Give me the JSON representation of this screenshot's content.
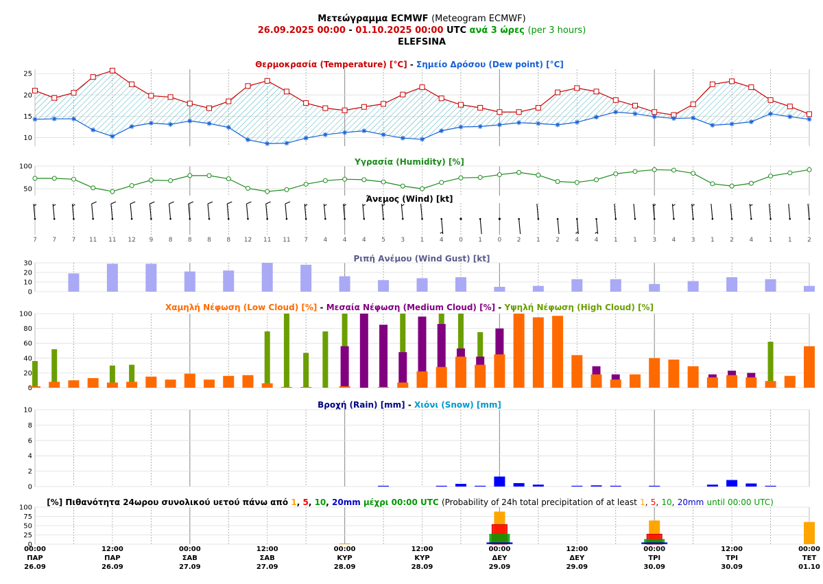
{
  "header": {
    "title_gr": "Μετεώγραμμα ECMWF",
    "title_en": "(Meteogram ECMWF)",
    "date_from": "26.09.2025 00:00",
    "date_sep": "-",
    "date_to": "01.10.2025 00:00",
    "utc": "UTC",
    "step_gr": "ανά 3 ώρες",
    "step_en": "(per 3 hours)",
    "station": "ELEFSINA"
  },
  "panels": {
    "temp": {
      "t1": "Θερμοκρασία (Temperature) [°C]",
      "sep": "-",
      "t2": "Σημείο Δρόσου (Dew point) [°C]"
    },
    "hum": {
      "t1": "Υγρασία (Humidity) [%]"
    },
    "wind": {
      "t1": "Άνεμος (Wind) [kt]"
    },
    "gust": {
      "t1": "Ριπή Ανέμου (Wind Gust) [kt]"
    },
    "cloud": {
      "t1": "Χαμηλή Νέφωση (Low Cloud) [%]",
      "sep1": "-",
      "t2": "Μεσαία Νέφωση (Medium Cloud) [%]",
      "sep2": "-",
      "t3": "Υψηλή Νέφωση (High Cloud) [%]"
    },
    "rain": {
      "t1": "Βροχή (Rain) [mm]",
      "sep": "-",
      "t2": "Χιόνι (Snow) [mm]"
    },
    "prob": {
      "p1": "[%] Πιθανότητα 24ωρου συνολικού υετού πάνω από",
      "p2": "μέχρι 00:00 UTC",
      "p3": "(Probability of 24h total precipitation of at least",
      "p4": "until 00:00 UTC)",
      "mm": "mm",
      "comma": ",",
      "thr1": "1",
      "thr5": "5",
      "thr10": "10",
      "thr20": "20"
    }
  },
  "colors": {
    "temp": "#cc0000",
    "dew": "#1560d6",
    "hum": "#1a8a1a",
    "gust": "#a9a9f5",
    "low": "#ff6a00",
    "medium": "#800080",
    "high": "#6b9e00",
    "rain": "#0000ff",
    "snow": "#0099cc",
    "darkblue": "#000080",
    "green": "#009900",
    "p1": "#ffa500",
    "p5": "#ff0000",
    "p10": "#00a000",
    "p20": "#0000cc"
  },
  "x_axis": {
    "time": [
      "00:00",
      "12:00",
      "00:00",
      "12:00",
      "00:00",
      "12:00",
      "00:00",
      "12:00",
      "00:00",
      "12:00",
      "00:00"
    ],
    "day": [
      "ΠΑΡ",
      "ΠΑΡ",
      "ΣΑΒ",
      "ΣΑΒ",
      "ΚΥΡ",
      "ΚΥΡ",
      "ΔΕΥ",
      "ΔΕΥ",
      "ΤΡΙ",
      "ΤΡΙ",
      "ΤΕΤ"
    ],
    "date": [
      "26.09",
      "26.09",
      "27.09",
      "27.09",
      "28.09",
      "28.09",
      "29.09",
      "29.09",
      "30.09",
      "30.09",
      "01.10"
    ]
  },
  "chart_data": [
    {
      "type": "line",
      "title": "Θερμοκρασία (Temperature) [°C] - Σημείο Δρόσου (Dew point) [°C]",
      "x_hours": [
        0,
        3,
        6,
        9,
        12,
        15,
        18,
        21,
        24,
        27,
        30,
        33,
        36,
        39,
        42,
        45,
        48,
        51,
        54,
        57,
        60,
        63,
        66,
        69,
        72,
        75,
        78,
        81,
        84,
        87,
        90,
        93,
        96,
        99,
        102,
        105,
        108,
        111,
        114,
        117,
        120
      ],
      "ylim": [
        8,
        26
      ],
      "yticks": [
        10,
        15,
        20,
        25
      ],
      "series": [
        {
          "name": "Temperature",
          "values": [
            21.0,
            19.3,
            20.5,
            24.2,
            25.7,
            22.5,
            19.8,
            19.5,
            18.0,
            16.9,
            18.5,
            22.1,
            23.3,
            20.8,
            18.1,
            16.9,
            16.4,
            17.2,
            17.9,
            20.1,
            21.8,
            19.2,
            17.7,
            17.0,
            16.0,
            16.0,
            17.0,
            20.6,
            21.6,
            20.8,
            18.8,
            17.5,
            16.0,
            15.3,
            17.8,
            22.5,
            23.2,
            21.8,
            18.8,
            17.3,
            15.5
          ]
        },
        {
          "name": "Dew point",
          "values": [
            14.3,
            14.4,
            14.4,
            11.8,
            10.3,
            12.6,
            13.4,
            13.1,
            13.9,
            13.3,
            12.4,
            9.5,
            8.6,
            8.7,
            9.9,
            10.7,
            11.2,
            11.6,
            10.7,
            9.9,
            9.6,
            11.6,
            12.5,
            12.6,
            13.0,
            13.5,
            13.3,
            13.0,
            13.6,
            14.8,
            16.0,
            15.6,
            14.9,
            14.5,
            14.6,
            12.9,
            13.2,
            13.7,
            15.6,
            14.9,
            14.3
          ]
        }
      ]
    },
    {
      "type": "line",
      "title": "Υγρασία (Humidity) [%]",
      "x_hours": [
        0,
        3,
        6,
        9,
        12,
        15,
        18,
        21,
        24,
        27,
        30,
        33,
        36,
        39,
        42,
        45,
        48,
        51,
        54,
        57,
        60,
        63,
        66,
        69,
        72,
        75,
        78,
        81,
        84,
        87,
        90,
        93,
        96,
        99,
        102,
        105,
        108,
        111,
        114,
        117,
        120
      ],
      "ylim": [
        35,
        100
      ],
      "yticks": [
        50,
        100
      ],
      "series": [
        {
          "name": "Humidity",
          "values": [
            73,
            73,
            71,
            52,
            44,
            57,
            69,
            68,
            79,
            79,
            72,
            51,
            44,
            48,
            60,
            68,
            71,
            70,
            65,
            56,
            50,
            64,
            74,
            75,
            81,
            86,
            80,
            66,
            64,
            70,
            83,
            88,
            92,
            91,
            84,
            61,
            56,
            62,
            78,
            85,
            92
          ]
        }
      ]
    },
    {
      "type": "table",
      "title": "Άνεμος (Wind) [kt]",
      "x_hours": [
        0,
        3,
        6,
        9,
        12,
        15,
        18,
        21,
        24,
        27,
        30,
        33,
        36,
        39,
        42,
        45,
        48,
        51,
        54,
        57,
        60,
        63,
        66,
        69,
        72,
        75,
        78,
        81,
        84,
        87,
        90,
        93,
        96,
        99,
        102,
        105,
        108,
        111,
        114,
        117,
        120
      ],
      "speed_kt": [
        7,
        7,
        7,
        11,
        11,
        12,
        9,
        8,
        8,
        8,
        8,
        12,
        11,
        11,
        7,
        4,
        4,
        4,
        5,
        3,
        1,
        4,
        0,
        1,
        0,
        2,
        1,
        2,
        4,
        4,
        1,
        1,
        3,
        4,
        3,
        1,
        2,
        4,
        1,
        1,
        2
      ]
    },
    {
      "type": "bar",
      "title": "Ριπή Ανέμου (Wind Gust) [kt]",
      "x_hours": [
        6,
        12,
        18,
        24,
        30,
        36,
        42,
        48,
        54,
        60,
        66,
        72,
        78,
        84,
        90,
        96,
        102,
        108,
        114,
        120
      ],
      "ylim": [
        0,
        30
      ],
      "yticks": [
        0,
        10,
        20,
        30
      ],
      "values": [
        19,
        29,
        29,
        21,
        22,
        30,
        28,
        16,
        12,
        14,
        15,
        5,
        6,
        13,
        13,
        8,
        11,
        15,
        13,
        6
      ]
    },
    {
      "type": "bar",
      "title": "Χαμηλή Νέφωση (Low Cloud) [%] - Μεσαία Νέφωση (Medium Cloud) [%] - Υψηλή Νέφωση (High Cloud) [%]",
      "x_hours": [
        0,
        3,
        6,
        9,
        12,
        15,
        18,
        21,
        24,
        27,
        30,
        33,
        36,
        39,
        42,
        45,
        48,
        51,
        54,
        57,
        60,
        63,
        66,
        69,
        72,
        75,
        78,
        81,
        84,
        87,
        90,
        93,
        96,
        99,
        102,
        105,
        108,
        111,
        114,
        117,
        120
      ],
      "ylim": [
        0,
        100
      ],
      "yticks": [
        0,
        20,
        40,
        60,
        80,
        100
      ],
      "series": [
        {
          "name": "High Cloud",
          "values": [
            36,
            52,
            0,
            0,
            30,
            31,
            0,
            0,
            0,
            0,
            0,
            0,
            76,
            100,
            47,
            76,
            100,
            0,
            0,
            100,
            0,
            100,
            100,
            75,
            0,
            0,
            0,
            0,
            0,
            0,
            0,
            0,
            0,
            0,
            0,
            0,
            0,
            0,
            62,
            0,
            0
          ]
        },
        {
          "name": "Medium Cloud",
          "values": [
            0,
            0,
            0,
            0,
            0,
            0,
            0,
            0,
            0,
            0,
            0,
            0,
            1,
            1,
            1,
            0,
            56,
            100,
            85,
            48,
            96,
            86,
            53,
            42,
            80,
            0,
            0,
            0,
            0,
            29,
            18,
            0,
            0,
            0,
            0,
            18,
            23,
            20,
            0,
            0,
            0
          ]
        },
        {
          "name": "Low Cloud",
          "values": [
            2,
            8,
            10,
            13,
            7,
            8,
            15,
            11,
            19,
            11,
            16,
            17,
            6,
            1,
            1,
            0,
            2,
            0,
            1,
            7,
            22,
            28,
            42,
            31,
            45,
            100,
            95,
            97,
            44,
            18,
            11,
            18,
            40,
            38,
            29,
            14,
            17,
            14,
            9,
            16,
            56
          ]
        }
      ]
    },
    {
      "type": "bar",
      "title": "Βροχή (Rain) [mm] - Χιόνι (Snow) [mm]",
      "x_hours": [
        0,
        3,
        6,
        9,
        12,
        15,
        18,
        21,
        24,
        27,
        30,
        33,
        36,
        39,
        42,
        45,
        48,
        51,
        54,
        57,
        60,
        63,
        66,
        69,
        72,
        75,
        78,
        81,
        84,
        87,
        90,
        93,
        96,
        99,
        102,
        105,
        108,
        111,
        114,
        117,
        120
      ],
      "ylim": [
        0,
        10
      ],
      "yticks": [
        0,
        2,
        4,
        6,
        8,
        10
      ],
      "series": [
        {
          "name": "Rain",
          "values": [
            0,
            0,
            0,
            0,
            0,
            0,
            0,
            0,
            0,
            0,
            0,
            0,
            0,
            0,
            0,
            0,
            0,
            0,
            0.1,
            0,
            0,
            0.1,
            0.35,
            0.1,
            1.3,
            0.45,
            0.25,
            0,
            0.1,
            0.15,
            0.1,
            0,
            0.1,
            0,
            0,
            0.25,
            0.85,
            0.4,
            0.1,
            0,
            0
          ]
        },
        {
          "name": "Snow",
          "values": [
            0,
            0,
            0,
            0,
            0,
            0,
            0,
            0,
            0,
            0,
            0,
            0,
            0,
            0,
            0,
            0,
            0,
            0,
            0,
            0,
            0,
            0,
            0,
            0,
            0,
            0,
            0,
            0,
            0,
            0,
            0,
            0,
            0,
            0,
            0,
            0,
            0,
            0,
            0,
            0,
            0
          ]
        }
      ]
    },
    {
      "type": "bar",
      "title": "[%] Πιθανότητα 24ωρου συνολικού υετού πάνω από 1, 5, 10, 20mm μέχρι 00:00 UTC",
      "x_hours": [
        48,
        72,
        96,
        120
      ],
      "ylim": [
        0,
        100
      ],
      "yticks": [
        0,
        25,
        50,
        75,
        100
      ],
      "series": [
        {
          "name": "1",
          "values": [
            2,
            88,
            64,
            60
          ]
        },
        {
          "name": "5",
          "values": [
            0,
            53,
            27,
            0
          ]
        },
        {
          "name": "10",
          "values": [
            0,
            28,
            14,
            0
          ]
        },
        {
          "name": "20",
          "values": [
            0,
            5,
            5,
            0
          ]
        }
      ]
    }
  ]
}
